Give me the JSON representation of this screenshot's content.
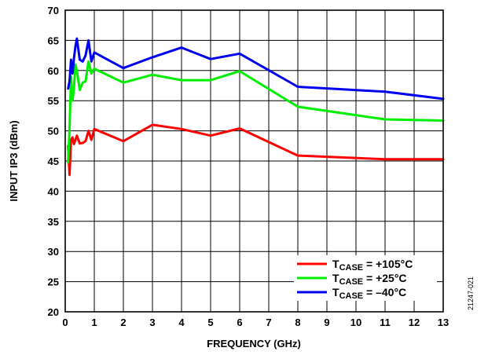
{
  "chart_data": {
    "type": "line",
    "xlabel": "FREQUENCY (GHz)",
    "ylabel": "INPUT IP3 (dBm)",
    "xlim": [
      0,
      13
    ],
    "ylim": [
      20,
      70
    ],
    "xticks": [
      "0",
      "1",
      "2",
      "3",
      "4",
      "5",
      "6",
      "7",
      "8",
      "9",
      "10",
      "11",
      "12",
      "13"
    ],
    "yticks": [
      "20",
      "25",
      "30",
      "35",
      "40",
      "45",
      "50",
      "55",
      "60",
      "65",
      "70"
    ],
    "grid": true,
    "legend_position": "bottom-right",
    "series": [
      {
        "name": "+105°C",
        "label_prefix": "T",
        "label_sub": "CASE",
        "label_value": " = +105°C",
        "color": "#ff0000",
        "x": [
          0.1,
          0.15,
          0.2,
          0.25,
          0.3,
          0.35,
          0.4,
          0.5,
          0.6,
          0.7,
          0.8,
          0.9,
          1,
          2,
          3,
          4,
          5,
          6,
          8,
          11,
          13
        ],
        "y": [
          47.5,
          42.7,
          48.5,
          48.9,
          47.8,
          48.5,
          49.2,
          47.9,
          48.0,
          48.3,
          50.0,
          48.5,
          50.3,
          48.3,
          51.0,
          50.3,
          49.2,
          50.4,
          45.9,
          45.3,
          45.3
        ]
      },
      {
        "name": "+25°C",
        "label_prefix": "T",
        "label_sub": "CASE",
        "label_value": " = +25°C",
        "color": "#00ee00",
        "x": [
          0.1,
          0.15,
          0.2,
          0.25,
          0.3,
          0.35,
          0.4,
          0.5,
          0.6,
          0.7,
          0.8,
          0.9,
          1,
          2,
          3,
          4,
          5,
          6,
          8,
          11,
          13
        ],
        "y": [
          44.8,
          50.3,
          59.0,
          55.0,
          57.0,
          61.0,
          60.0,
          56.8,
          58.0,
          58.2,
          61.5,
          59.5,
          60.3,
          58.0,
          59.3,
          58.4,
          58.4,
          59.9,
          54.0,
          51.9,
          51.7
        ]
      },
      {
        "name": "–40°C",
        "label_prefix": "T",
        "label_sub": "CASE",
        "label_value": " = –40°C",
        "color": "#0000ee",
        "x": [
          0.1,
          0.15,
          0.2,
          0.25,
          0.3,
          0.35,
          0.4,
          0.5,
          0.6,
          0.7,
          0.8,
          0.9,
          1,
          2,
          3,
          4,
          5,
          6,
          8,
          11,
          13
        ],
        "y": [
          57.0,
          58.2,
          61.8,
          59.5,
          62.0,
          64.0,
          65.3,
          61.8,
          61.5,
          62.5,
          65.0,
          61.5,
          63.0,
          60.4,
          62.2,
          63.8,
          61.9,
          62.8,
          57.3,
          56.5,
          55.3
        ]
      }
    ]
  },
  "figure_id": "21247-021"
}
